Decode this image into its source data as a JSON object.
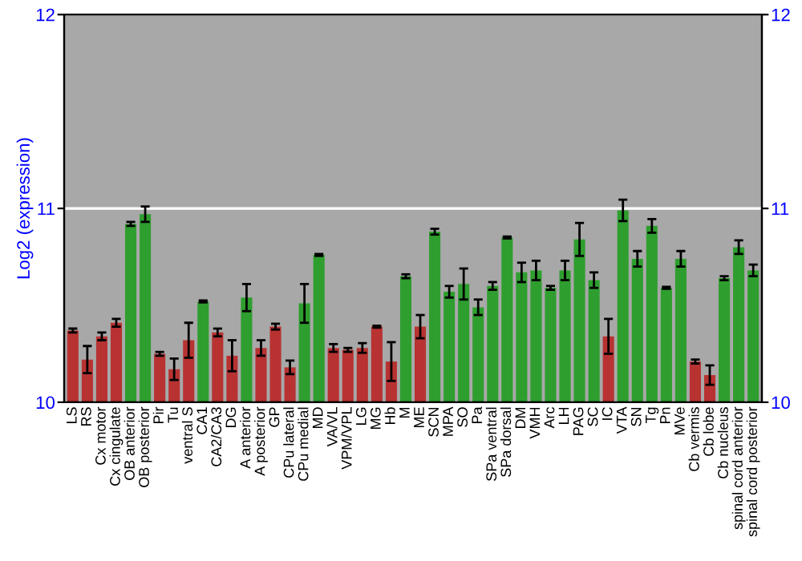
{
  "chart_data": {
    "type": "bar",
    "ylabel": "Log2 (expression)",
    "categories": [
      "LS",
      "RS",
      "Cx motor",
      "Cx cingulate",
      "OB anterior",
      "OB posterior",
      "Pir",
      "Tu",
      "ventral S",
      "CA1",
      "CA2/CA3",
      "DG",
      "A anterior",
      "A posterior",
      "GP",
      "CPu lateral",
      "CPu medial",
      "MD",
      "VA/VL",
      "VPM/VPL",
      "LG",
      "MG",
      "Hb",
      "M",
      "ME",
      "SCN",
      "MPA",
      "SO",
      "Pa",
      "SPa ventral",
      "SPa dorsal",
      "DM",
      "VMH",
      "Arc",
      "LH",
      "PAG",
      "SC",
      "IC",
      "VTA",
      "SN",
      "Tg",
      "Pn",
      "MVe",
      "Cb vermis",
      "Cb lobe",
      "Cb nucleus",
      "spinal cord anterior",
      "spinal cord posterior"
    ],
    "values": [
      10.37,
      10.22,
      10.34,
      10.41,
      10.92,
      10.97,
      10.25,
      10.17,
      10.32,
      10.52,
      10.36,
      10.24,
      10.54,
      10.28,
      10.39,
      10.18,
      10.51,
      10.76,
      10.28,
      10.27,
      10.28,
      10.39,
      10.21,
      10.65,
      10.39,
      10.88,
      10.57,
      10.61,
      10.49,
      10.6,
      10.85,
      10.67,
      10.68,
      10.59,
      10.68,
      10.84,
      10.63,
      10.34,
      10.99,
      10.74,
      10.91,
      10.59,
      10.74,
      10.21,
      10.14,
      10.64,
      10.8,
      10.68
    ],
    "errors": [
      0.01,
      0.07,
      0.02,
      0.02,
      0.01,
      0.04,
      0.01,
      0.055,
      0.09,
      0.005,
      0.02,
      0.08,
      0.07,
      0.04,
      0.015,
      0.035,
      0.1,
      0.005,
      0.02,
      0.01,
      0.025,
      0.005,
      0.1,
      0.01,
      0.06,
      0.015,
      0.03,
      0.08,
      0.04,
      0.02,
      0.005,
      0.05,
      0.05,
      0.01,
      0.05,
      0.085,
      0.04,
      0.09,
      0.055,
      0.04,
      0.035,
      0.005,
      0.04,
      0.01,
      0.05,
      0.01,
      0.035,
      0.03
    ],
    "colors": [
      "#b83232",
      "#b83232",
      "#b83232",
      "#b83232",
      "#2e9e2e",
      "#2e9e2e",
      "#b83232",
      "#b83232",
      "#b83232",
      "#2e9e2e",
      "#b83232",
      "#b83232",
      "#2e9e2e",
      "#b83232",
      "#b83232",
      "#b83232",
      "#2e9e2e",
      "#2e9e2e",
      "#b83232",
      "#b83232",
      "#b83232",
      "#b83232",
      "#b83232",
      "#2e9e2e",
      "#b83232",
      "#2e9e2e",
      "#2e9e2e",
      "#2e9e2e",
      "#2e9e2e",
      "#2e9e2e",
      "#2e9e2e",
      "#2e9e2e",
      "#2e9e2e",
      "#2e9e2e",
      "#2e9e2e",
      "#2e9e2e",
      "#2e9e2e",
      "#b83232",
      "#2e9e2e",
      "#2e9e2e",
      "#2e9e2e",
      "#2e9e2e",
      "#2e9e2e",
      "#b83232",
      "#b83232",
      "#2e9e2e",
      "#2e9e2e",
      "#2e9e2e"
    ],
    "ylim": [
      10,
      12
    ],
    "yticks": [
      10,
      11,
      12
    ],
    "y2lim": [
      10,
      12
    ],
    "y2ticks": [
      10,
      11,
      12
    ],
    "grid": "y"
  }
}
